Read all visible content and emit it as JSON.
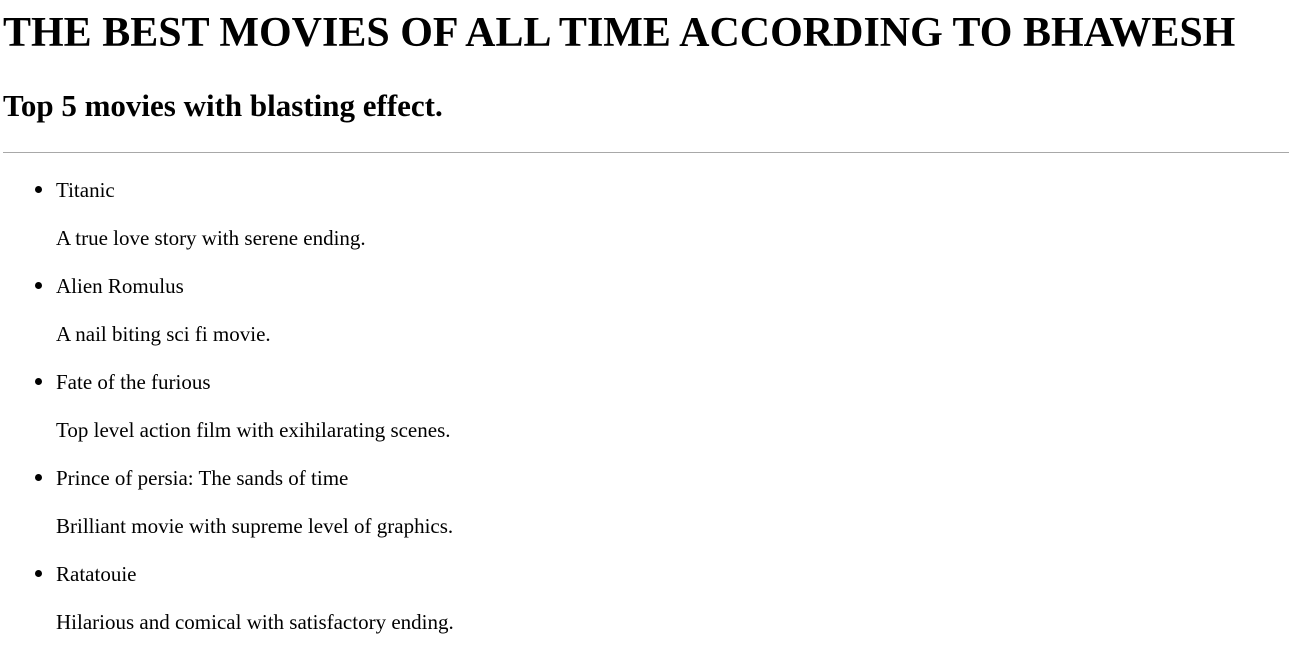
{
  "header": {
    "title": "THE BEST MOVIES OF ALL TIME ACCORDING TO BHAWESH",
    "subtitle": "Top 5 movies with blasting effect."
  },
  "movies": [
    {
      "name": "Titanic",
      "description": "A true love story with serene ending."
    },
    {
      "name": "Alien Romulus",
      "description": "A nail biting sci fi movie."
    },
    {
      "name": "Fate of the furious",
      "description": "Top level action film with exihilarating scenes."
    },
    {
      "name": "Prince of persia: The sands of time",
      "description": "Brilliant movie with supreme level of graphics."
    },
    {
      "name": "Ratatouie",
      "description": "Hilarious and comical with satisfactory ending."
    }
  ]
}
